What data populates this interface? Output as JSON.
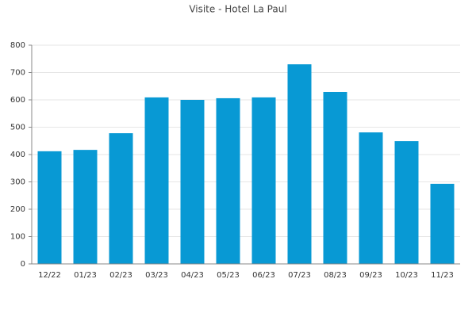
{
  "chart_data": {
    "type": "bar",
    "title": "Visite - Hotel La Paul",
    "categories": [
      "12/22",
      "01/23",
      "02/23",
      "03/23",
      "04/23",
      "05/23",
      "06/23",
      "07/23",
      "08/23",
      "09/23",
      "10/23",
      "11/23"
    ],
    "values": [
      412,
      417,
      478,
      609,
      600,
      606,
      609,
      730,
      629,
      481,
      449,
      293
    ],
    "color": "#0899d4",
    "ylim": [
      0,
      800
    ],
    "yticks": [
      0,
      100,
      200,
      300,
      400,
      500,
      600,
      700,
      800
    ],
    "grid": true
  }
}
